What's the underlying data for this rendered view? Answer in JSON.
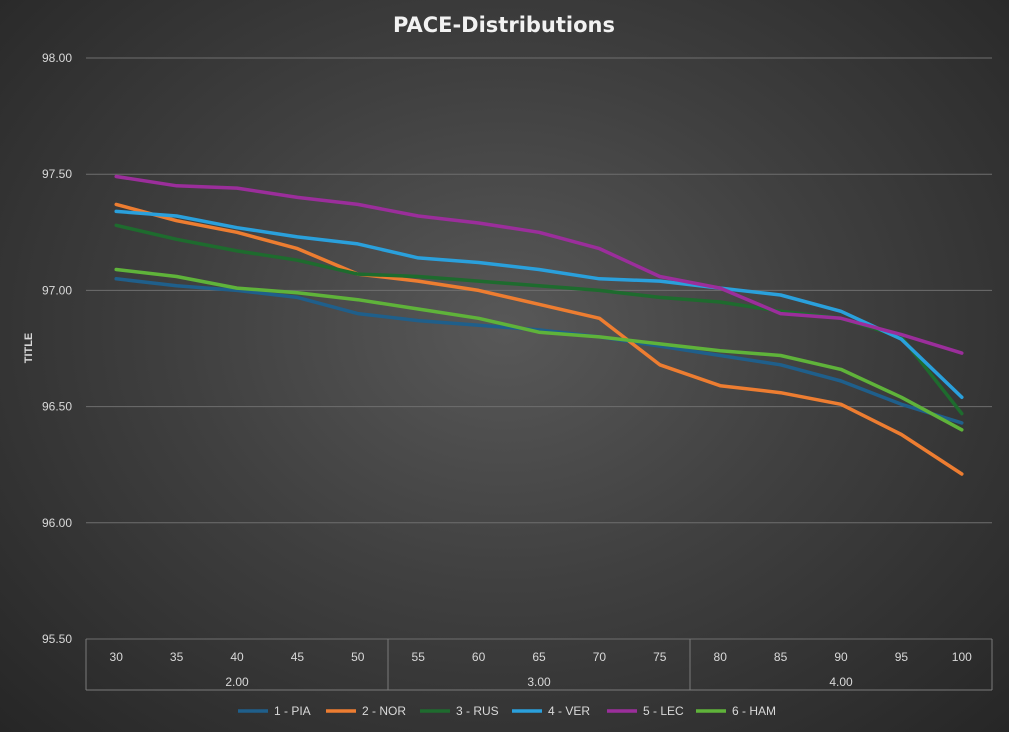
{
  "chart_data": {
    "type": "line",
    "title": "PACE-Distributions",
    "ylabel": "TITLE",
    "xlabel": "",
    "ylim": [
      95.5,
      98.0
    ],
    "y_ticks": [
      "95.50",
      "96.00",
      "96.50",
      "97.00",
      "97.50",
      "98.00"
    ],
    "y_tick_values": [
      95.5,
      96.0,
      96.5,
      97.0,
      97.5,
      98.0
    ],
    "categories": [
      "30",
      "35",
      "40",
      "45",
      "50",
      "55",
      "60",
      "65",
      "70",
      "75",
      "80",
      "85",
      "90",
      "95",
      "100"
    ],
    "groups": [
      {
        "label": "2.00",
        "count": 5
      },
      {
        "label": "3.00",
        "count": 5
      },
      {
        "label": "4.00",
        "count": 5
      }
    ],
    "grid": true,
    "legend_position": "bottom",
    "series": [
      {
        "name": "1 - PIA",
        "color": "#1f5f8b",
        "values": [
          97.05,
          97.02,
          97.0,
          96.97,
          96.9,
          96.87,
          96.85,
          96.83,
          96.8,
          96.76,
          96.72,
          96.68,
          96.61,
          96.51,
          96.43
        ]
      },
      {
        "name": "2 - NOR",
        "color": "#ed7d31",
        "values": [
          97.37,
          97.3,
          97.25,
          97.18,
          97.07,
          97.04,
          97.0,
          96.94,
          96.88,
          96.68,
          96.59,
          96.56,
          96.51,
          96.38,
          96.21
        ]
      },
      {
        "name": "3 - RUS",
        "color": "#1e6b2e",
        "values": [
          97.28,
          97.22,
          97.17,
          97.13,
          97.07,
          97.06,
          97.04,
          97.02,
          97.0,
          96.97,
          96.95,
          96.91,
          96.88,
          96.8,
          96.47
        ]
      },
      {
        "name": "4 - VER",
        "color": "#2aa0dc",
        "values": [
          97.34,
          97.32,
          97.27,
          97.23,
          97.2,
          97.14,
          97.12,
          97.09,
          97.05,
          97.04,
          97.01,
          96.98,
          96.91,
          96.79,
          96.54
        ]
      },
      {
        "name": "5 - LEC",
        "color": "#9b2e9b",
        "values": [
          97.49,
          97.45,
          97.44,
          97.4,
          97.37,
          97.32,
          97.29,
          97.25,
          97.18,
          97.06,
          97.01,
          96.9,
          96.88,
          96.81,
          96.73
        ]
      },
      {
        "name": "6 - HAM",
        "color": "#5fb33a",
        "values": [
          97.09,
          97.06,
          97.01,
          96.99,
          96.96,
          96.92,
          96.88,
          96.82,
          96.8,
          96.77,
          96.74,
          96.72,
          96.66,
          96.54,
          96.4
        ]
      }
    ]
  }
}
